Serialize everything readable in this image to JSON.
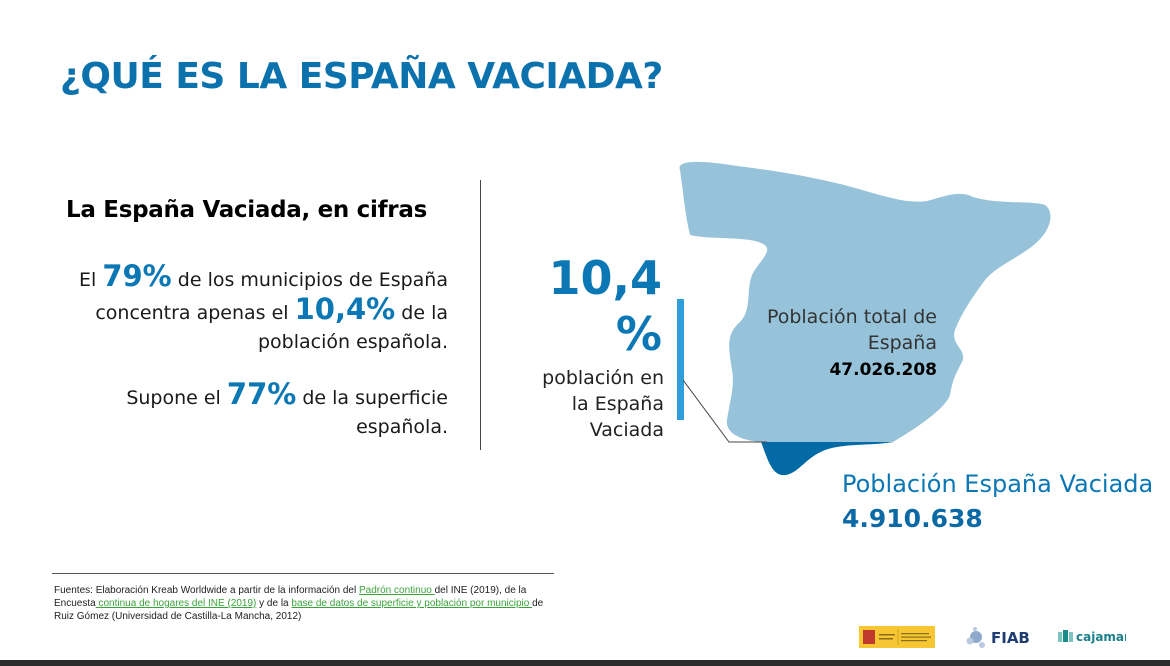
{
  "title": "¿QUÉ ES LA ESPAÑA VACIADA?",
  "left": {
    "subtitle": "La España Vaciada, en cifras",
    "p1": {
      "pre": "El ",
      "big1": "79%",
      "mid": " de los municipios de España concentra apenas el ",
      "big2": "10,4%",
      "post": " de la población española."
    },
    "p2": {
      "pre": "Supone el ",
      "big": "77%",
      "post": " de la superficie española."
    }
  },
  "stat": {
    "value": "10,4 %",
    "caption": "población en la España Vaciada"
  },
  "map": {
    "total_label": "Población total de España",
    "total_value": "47.026.208",
    "vaciada_label": "Población España Vaciada",
    "vaciada_value": "4.910.638",
    "colors": {
      "total": "#96c3da",
      "vaciada": "#036aa5"
    }
  },
  "footnote": {
    "t1": "Fuentes: Elaboración Kreab Worldwide a partir de la información del ",
    "l1": "Padrón continuo ",
    "t2": "del INE (2019), de la Encuesta",
    "l2": " continua de hogares del INE (2019)",
    "t3": " y de la ",
    "l3": "base de datos de superficie y población por municipio ",
    "t4": "de Ruiz Gómez (Universidad de Castilla-La Mancha, 2012)"
  },
  "logos": {
    "gobierno": "GOBIERNO DE ESPAÑA · MINISTERIO DE AGRICULTURA, PESCA Y ALIMENTACIÓN",
    "fiab": "FIAB",
    "cajamar": "cajamar"
  }
}
